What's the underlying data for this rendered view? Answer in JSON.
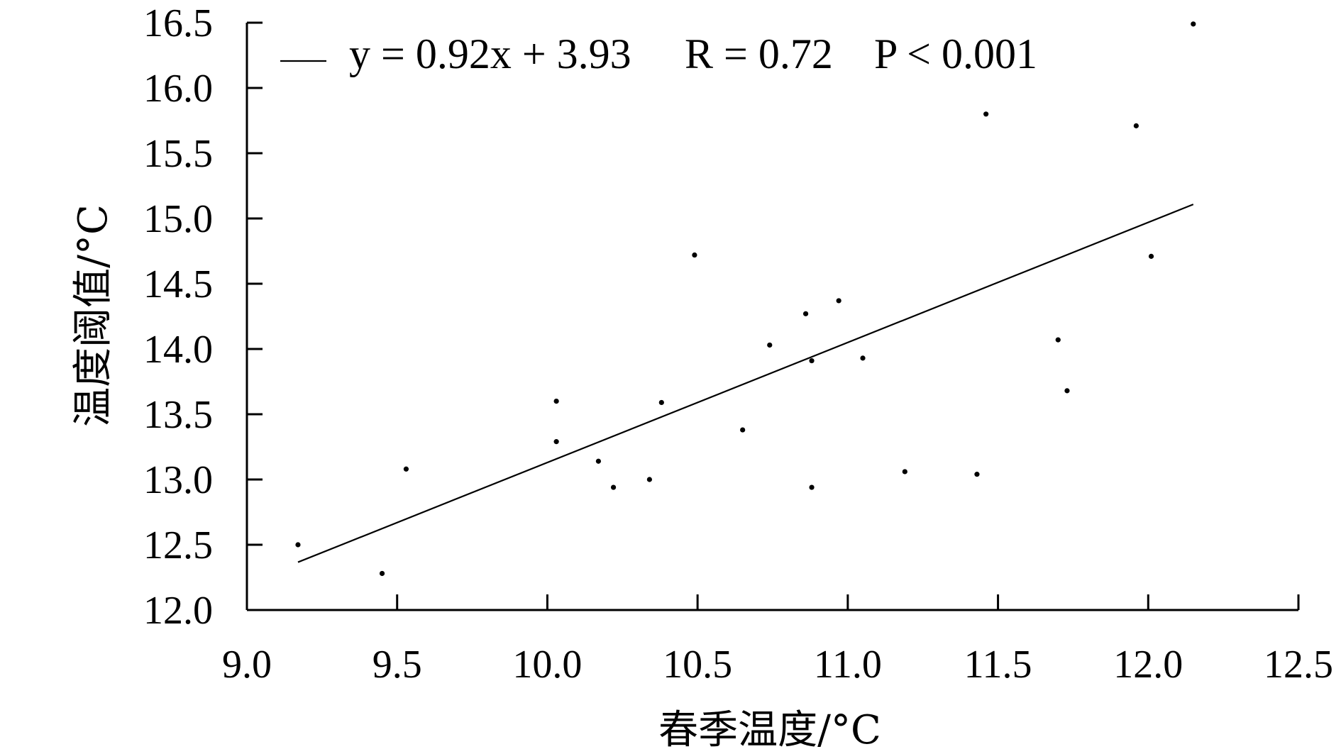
{
  "chart_data": {
    "type": "scatter",
    "title": "",
    "xlabel": "春季温度/°C",
    "ylabel": "温度阈值/°C",
    "xlim": [
      9.0,
      12.5
    ],
    "ylim": [
      12.0,
      16.5
    ],
    "x_ticks": [
      "9.0",
      "9.5",
      "10.0",
      "10.5",
      "11.0",
      "11.5",
      "12.0",
      "12.5"
    ],
    "y_ticks": [
      "12.0",
      "12.5",
      "13.0",
      "13.5",
      "14.0",
      "14.5",
      "15.0",
      "15.5",
      "16.0",
      "16.5"
    ],
    "grid": false,
    "legend_position": "top-left",
    "legend": {
      "line_label": "y = 0.92x + 3.93",
      "r_label": "R = 0.72",
      "p_label": "P < 0.001"
    },
    "fit_line": {
      "slope": 0.92,
      "intercept": 3.93,
      "x_range": [
        9.17,
        12.15
      ]
    },
    "points": [
      {
        "x": 9.17,
        "y": 12.5
      },
      {
        "x": 9.45,
        "y": 12.28
      },
      {
        "x": 9.53,
        "y": 13.08
      },
      {
        "x": 10.03,
        "y": 13.6
      },
      {
        "x": 10.03,
        "y": 13.29
      },
      {
        "x": 10.17,
        "y": 13.14
      },
      {
        "x": 10.22,
        "y": 12.94
      },
      {
        "x": 10.34,
        "y": 13.0
      },
      {
        "x": 10.38,
        "y": 13.59
      },
      {
        "x": 10.49,
        "y": 14.72
      },
      {
        "x": 10.65,
        "y": 13.38
      },
      {
        "x": 10.74,
        "y": 14.03
      },
      {
        "x": 10.86,
        "y": 14.27
      },
      {
        "x": 10.88,
        "y": 13.91
      },
      {
        "x": 10.88,
        "y": 12.94
      },
      {
        "x": 10.97,
        "y": 14.37
      },
      {
        "x": 11.05,
        "y": 13.93
      },
      {
        "x": 11.19,
        "y": 13.06
      },
      {
        "x": 11.43,
        "y": 13.04
      },
      {
        "x": 11.46,
        "y": 15.8
      },
      {
        "x": 11.7,
        "y": 14.07
      },
      {
        "x": 11.73,
        "y": 13.68
      },
      {
        "x": 11.96,
        "y": 15.71
      },
      {
        "x": 12.01,
        "y": 14.71
      },
      {
        "x": 12.15,
        "y": 16.49
      }
    ],
    "colors": {
      "points": "#000000",
      "line": "#000000",
      "axis": "#000000"
    }
  }
}
